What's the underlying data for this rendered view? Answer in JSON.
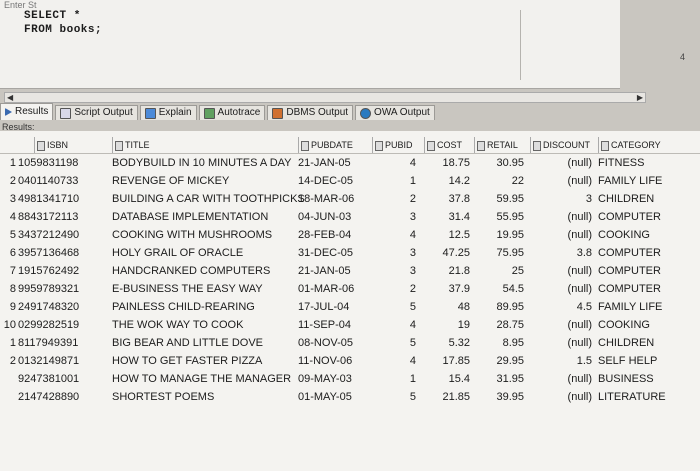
{
  "editor": {
    "header": "Enter St",
    "line1": "SELECT *",
    "line2": "FROM books;",
    "side_number": "4"
  },
  "tabs": [
    {
      "label": "Results",
      "icon": "results-icon"
    },
    {
      "label": "Script Output",
      "icon": "script-output-icon"
    },
    {
      "label": "Explain",
      "icon": "explain-icon"
    },
    {
      "label": "Autotrace",
      "icon": "autotrace-icon"
    },
    {
      "label": "DBMS Output",
      "icon": "dbms-output-icon"
    },
    {
      "label": "OWA Output",
      "icon": "owa-output-icon"
    }
  ],
  "results_label": "Results:",
  "columns": [
    "ISBN",
    "TITLE",
    "PUBDATE",
    "PUBID",
    "COST",
    "RETAIL",
    "DISCOUNT",
    "CATEGORY"
  ],
  "rows": [
    {
      "n": "1",
      "isbn": "1059831198",
      "title": "BODYBUILD IN 10 MINUTES A DAY",
      "pubdate": "21-JAN-05",
      "pubid": "4",
      "cost": "18.75",
      "retail": "30.95",
      "discount": "(null)",
      "category": "FITNESS"
    },
    {
      "n": "2",
      "isbn": "0401140733",
      "title": "REVENGE OF MICKEY",
      "pubdate": "14-DEC-05",
      "pubid": "1",
      "cost": "14.2",
      "retail": "22",
      "discount": "(null)",
      "category": "FAMILY LIFE"
    },
    {
      "n": "3",
      "isbn": "4981341710",
      "title": "BUILDING A CAR WITH TOOTHPICKS",
      "pubdate": "18-MAR-06",
      "pubid": "2",
      "cost": "37.8",
      "retail": "59.95",
      "discount": "3",
      "category": "CHILDREN"
    },
    {
      "n": "4",
      "isbn": "8843172113",
      "title": "DATABASE IMPLEMENTATION",
      "pubdate": "04-JUN-03",
      "pubid": "3",
      "cost": "31.4",
      "retail": "55.95",
      "discount": "(null)",
      "category": "COMPUTER"
    },
    {
      "n": "5",
      "isbn": "3437212490",
      "title": "COOKING WITH MUSHROOMS",
      "pubdate": "28-FEB-04",
      "pubid": "4",
      "cost": "12.5",
      "retail": "19.95",
      "discount": "(null)",
      "category": "COOKING"
    },
    {
      "n": "6",
      "isbn": "3957136468",
      "title": "HOLY GRAIL OF ORACLE",
      "pubdate": "31-DEC-05",
      "pubid": "3",
      "cost": "47.25",
      "retail": "75.95",
      "discount": "3.8",
      "category": "COMPUTER"
    },
    {
      "n": "7",
      "isbn": "1915762492",
      "title": "HANDCRANKED COMPUTERS",
      "pubdate": "21-JAN-05",
      "pubid": "3",
      "cost": "21.8",
      "retail": "25",
      "discount": "(null)",
      "category": "COMPUTER"
    },
    {
      "n": "8",
      "isbn": "9959789321",
      "title": "E-BUSINESS THE EASY WAY",
      "pubdate": "01-MAR-06",
      "pubid": "2",
      "cost": "37.9",
      "retail": "54.5",
      "discount": "(null)",
      "category": "COMPUTER"
    },
    {
      "n": "9",
      "isbn": "2491748320",
      "title": "PAINLESS CHILD-REARING",
      "pubdate": "17-JUL-04",
      "pubid": "5",
      "cost": "48",
      "retail": "89.95",
      "discount": "4.5",
      "category": "FAMILY LIFE"
    },
    {
      "n": "10",
      "isbn": "0299282519",
      "title": "THE WOK WAY TO COOK",
      "pubdate": "11-SEP-04",
      "pubid": "4",
      "cost": "19",
      "retail": "28.75",
      "discount": "(null)",
      "category": "COOKING"
    },
    {
      "n": "1",
      "isbn": "8117949391",
      "title": "BIG BEAR AND LITTLE DOVE",
      "pubdate": "08-NOV-05",
      "pubid": "5",
      "cost": "5.32",
      "retail": "8.95",
      "discount": "(null)",
      "category": "CHILDREN"
    },
    {
      "n": "2",
      "isbn": "0132149871",
      "title": "HOW TO GET FASTER PIZZA",
      "pubdate": "11-NOV-06",
      "pubid": "4",
      "cost": "17.85",
      "retail": "29.95",
      "discount": "1.5",
      "category": "SELF HELP"
    },
    {
      "n": "",
      "isbn": "9247381001",
      "title": "HOW TO MANAGE THE MANAGER",
      "pubdate": "09-MAY-03",
      "pubid": "1",
      "cost": "15.4",
      "retail": "31.95",
      "discount": "(null)",
      "category": "BUSINESS"
    },
    {
      "n": "",
      "isbn": "2147428890",
      "title": "SHORTEST POEMS",
      "pubdate": "01-MAY-05",
      "pubid": "5",
      "cost": "21.85",
      "retail": "39.95",
      "discount": "(null)",
      "category": "LITERATURE"
    }
  ]
}
